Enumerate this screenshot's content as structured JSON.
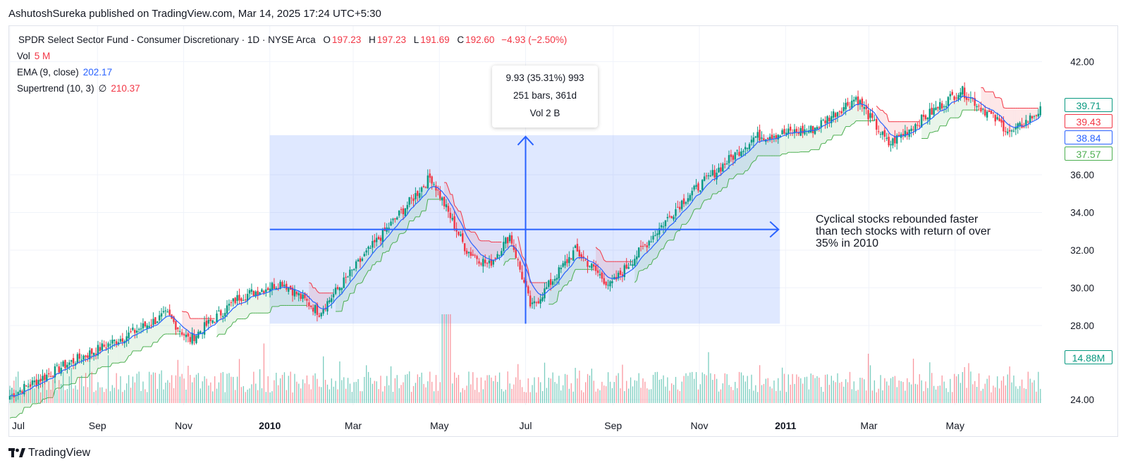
{
  "header": {
    "publisher_line": "AshutoshSureka published on TradingView.com, Mar 14, 2025 17:24 UTC+5:30"
  },
  "legend": {
    "symbol": "SPDR Select Sector Fund - Consumer Discretionary · 1D · NYSE Arca",
    "open_label": "O",
    "open": "197.23",
    "high_label": "H",
    "high": "197.23",
    "low_label": "L",
    "low": "191.69",
    "close_label": "C",
    "close": "192.60",
    "change": "−4.93 (−2.50%)",
    "vol_label": "Vol",
    "vol_value": "5 M",
    "ema_label": "EMA (9, close)",
    "ema_value": "202.17",
    "supertrend_label": "Supertrend (10, 3)",
    "supertrend_symbol": "∅",
    "supertrend_value": "210.37"
  },
  "measure_tooltip": {
    "line1": "9.93 (35.31%) 993",
    "line2": "251 bars, 361d",
    "line3": "Vol 2 B"
  },
  "annotation": {
    "text": "Cyclical stocks rebounded faster than tech stocks with return of over 35% in 2010"
  },
  "price_tags": [
    {
      "value": "39.71",
      "color": "#089981"
    },
    {
      "value": "39.43",
      "color": "#f23645"
    },
    {
      "value": "38.84",
      "color": "#2962ff"
    },
    {
      "value": "37.57",
      "color": "#4caf50"
    },
    {
      "value": "14.88M",
      "color": "#089981"
    }
  ],
  "branding": {
    "logo_icon": "tradingview-logo-icon",
    "name": "TradingView"
  },
  "chart_data": {
    "type": "candlestick",
    "x_tick_labels": [
      "Jul",
      "Sep",
      "Nov",
      "2010",
      "Mar",
      "May",
      "Jul",
      "Sep",
      "Nov",
      "2011",
      "Mar",
      "May"
    ],
    "bold_x_ticks": [
      "2010",
      "2011"
    ],
    "y_tick_labels": [
      "42.00",
      "36.00",
      "34.00",
      "32.00",
      "30.00",
      "28.00",
      "24.00"
    ],
    "ylim": [
      24,
      42
    ],
    "grid": true,
    "price_path_anchors": [
      {
        "date": "2009-07-01",
        "close": 24.2
      },
      {
        "date": "2009-08-10",
        "close": 25.9
      },
      {
        "date": "2009-09-20",
        "close": 27.4
      },
      {
        "date": "2009-10-20",
        "close": 28.6
      },
      {
        "date": "2009-11-05",
        "close": 27.2
      },
      {
        "date": "2009-12-10",
        "close": 29.5
      },
      {
        "date": "2010-01-10",
        "close": 30.3
      },
      {
        "date": "2010-02-05",
        "close": 28.7
      },
      {
        "date": "2010-03-10",
        "close": 31.8
      },
      {
        "date": "2010-04-25",
        "close": 35.9
      },
      {
        "date": "2010-05-20",
        "close": 32.0
      },
      {
        "date": "2010-06-05",
        "close": 31.2
      },
      {
        "date": "2010-06-20",
        "close": 32.8
      },
      {
        "date": "2010-07-05",
        "close": 28.9
      },
      {
        "date": "2010-08-05",
        "close": 32.0
      },
      {
        "date": "2010-08-30",
        "close": 30.1
      },
      {
        "date": "2010-10-20",
        "close": 34.6
      },
      {
        "date": "2010-12-10",
        "close": 38.0
      },
      {
        "date": "2011-01-20",
        "close": 38.4
      },
      {
        "date": "2011-02-20",
        "close": 40.1
      },
      {
        "date": "2011-03-15",
        "close": 37.6
      },
      {
        "date": "2011-05-05",
        "close": 40.5
      },
      {
        "date": "2011-06-10",
        "close": 38.2
      },
      {
        "date": "2011-06-30",
        "close": 39.4
      }
    ],
    "measure_range": {
      "from_date": "2010-01-01",
      "to_date": "2010-12-28",
      "low": 28.1,
      "high": 38.1
    },
    "series": [
      {
        "name": "EMA (9, close)",
        "color": "#2962ff"
      },
      {
        "name": "Supertrend (10, 3)",
        "up_color": "#4caf50",
        "down_color": "#f23645"
      },
      {
        "name": "Vol",
        "up_color": "#22ab94",
        "down_color": "#f7525f"
      }
    ]
  }
}
